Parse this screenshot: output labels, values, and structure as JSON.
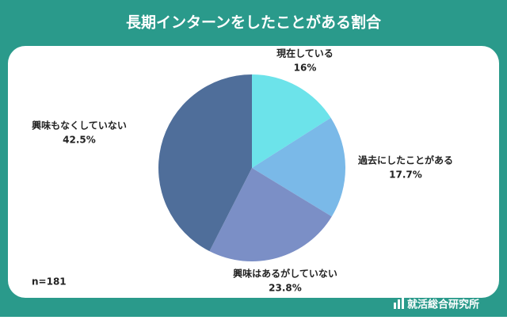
{
  "chart_data": {
    "type": "pie",
    "title": "長期インターンをしたことがある割合",
    "categories": [
      "現在している",
      "過去にしたことがある",
      "興味はあるがしていない",
      "興味もなくしていない"
    ],
    "values": [
      16,
      17.7,
      23.8,
      42.5
    ],
    "value_labels": [
      "16%",
      "17.7%",
      "23.8%",
      "42.5%"
    ],
    "colors": [
      "#6ce3ea",
      "#7ab9e8",
      "#7b8fc6",
      "#4f6e9a"
    ],
    "note": "n=181",
    "source": "就活総合研究所"
  }
}
